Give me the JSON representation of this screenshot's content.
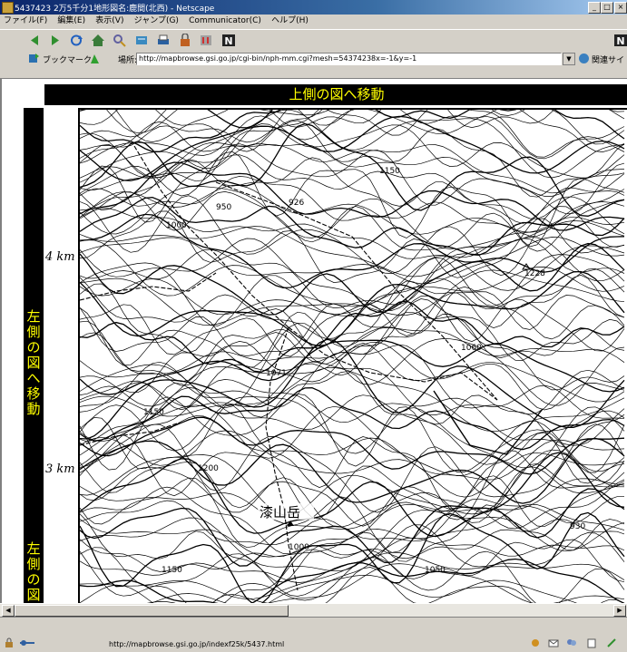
{
  "window": {
    "title": "5437423 2万5千分1地形図名:鹿間(北西) - Netscape",
    "buttons": [
      "_",
      "□",
      "×"
    ]
  },
  "menu": [
    "ファイル(F)",
    "編集(E)",
    "表示(V)",
    "ジャンプ(G)",
    "Communicator(C)",
    "ヘルプ(H)"
  ],
  "location": {
    "bookmarks_label": "ブックマーク",
    "location_label": "場所:",
    "url": "http://mapbrowse.gsi.go.jp/cgi-bin/nph-mm.cgi?mesh=54374238x=-1&y=-1",
    "related_label": "関連サイト"
  },
  "page": {
    "top_nav": "上側の図へ移動",
    "left_nav": "左側の図へ移動",
    "left_nav_2": "左側の図へ移",
    "km_labels": [
      "4 km",
      "3 km"
    ],
    "map": {
      "mountain_name": "漆山岳",
      "elevation_labels": [
        "950",
        "926",
        "1000",
        "1228",
        "1071",
        "1150",
        "1050",
        "1200",
        "1000",
        "1150",
        "930",
        "1060",
        "1150"
      ]
    }
  },
  "status": {
    "url": "http://mapbrowse.gsi.go.jp/indexf25k/5437.html"
  },
  "colors": {
    "nav_bg": "#000000",
    "nav_text": "#ffff00",
    "titlebar": "#0a246a"
  }
}
